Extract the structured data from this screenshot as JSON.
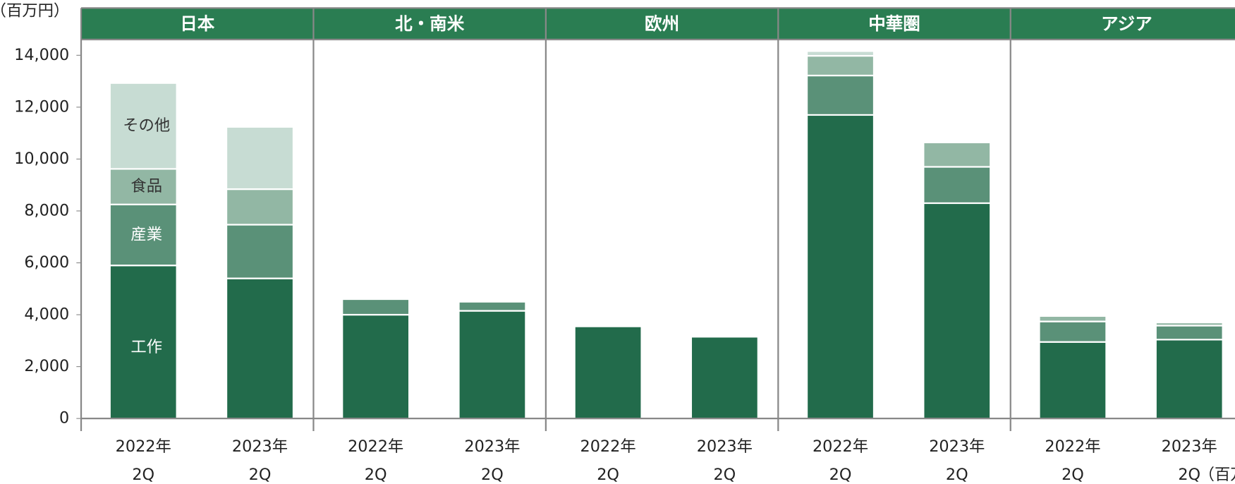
{
  "chart_data": {
    "type": "stacked_bar",
    "y_unit": "（百万円）",
    "groups": [
      "日本",
      "北・南米",
      "欧州",
      "中華圏",
      "アジア"
    ],
    "group_color": "#2a7d52",
    "categories": [
      [
        "2022年",
        "2Q"
      ],
      [
        "2023年",
        "2Q"
      ],
      [
        "2022年",
        "2Q"
      ],
      [
        "2023年",
        "2Q"
      ],
      [
        "2022年",
        "2Q"
      ],
      [
        "2023年",
        "2Q"
      ],
      [
        "2022年",
        "2Q"
      ],
      [
        "2023年",
        "2Q"
      ],
      [
        "2022年",
        "2Q"
      ],
      [
        "2023年",
        "2Q"
      ]
    ],
    "series": [
      {
        "name": "工作",
        "color": "#226b4b",
        "values": [
          5900,
          5400,
          4000,
          4150,
          3550,
          3150,
          11700,
          8300,
          2950,
          3040
        ]
      },
      {
        "name": "産業",
        "color": "#5a9178",
        "values": [
          2350,
          2070,
          600,
          350,
          0,
          0,
          1520,
          1400,
          790,
          540
        ]
      },
      {
        "name": "食品",
        "color": "#92b7a4",
        "values": [
          1370,
          1370,
          0,
          0,
          0,
          0,
          760,
          940,
          210,
          120
        ]
      },
      {
        "name": "その他",
        "color": "#c7dcd3",
        "values": [
          3310,
          2400,
          0,
          0,
          0,
          0,
          180,
          60,
          0,
          0
        ]
      }
    ],
    "ylim": [
      0,
      14000
    ],
    "yticks": [
      0,
      {
        "value": 2000,
        "label": "2,000"
      },
      {
        "value": 4000,
        "label": "4,000"
      },
      {
        "value": 6000,
        "label": "6,000"
      },
      {
        "value": 8000,
        "label": "8,000"
      },
      {
        "value": 10000,
        "label": "10,000"
      },
      {
        "value": 12000,
        "label": "12,000"
      },
      {
        "value": 14000,
        "label": "14,000"
      }
    ]
  }
}
